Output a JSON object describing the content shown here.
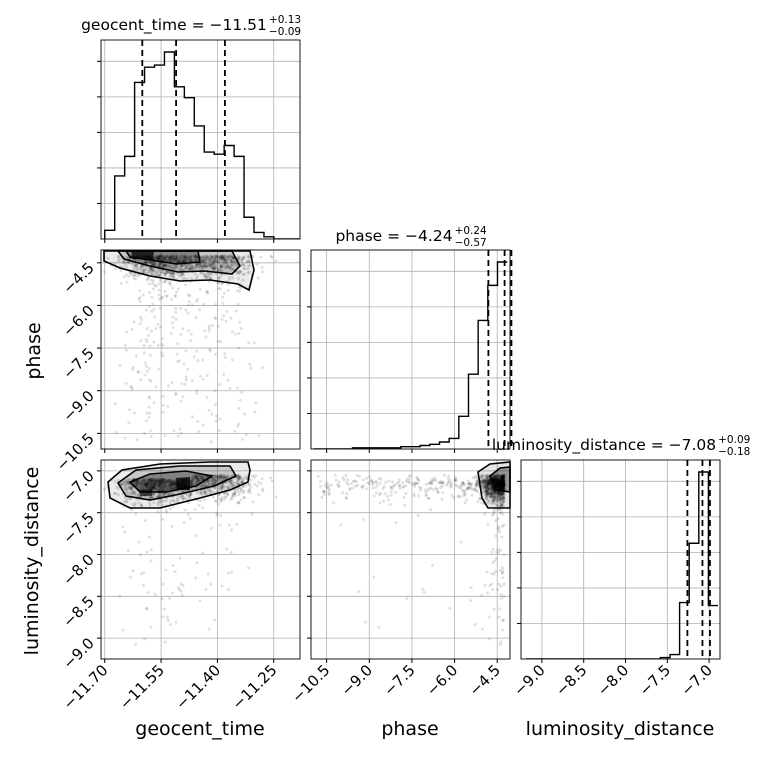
{
  "chart_data": {
    "type": "corner",
    "parameters": [
      "geocent_time",
      "phase",
      "luminosity_distance"
    ],
    "ranges": {
      "geocent_time": [
        -11.71,
        -11.18
      ],
      "phase": [
        -11.05,
        -4.05
      ],
      "luminosity_distance": [
        -9.25,
        -6.87
      ]
    },
    "ticks": {
      "geocent_time": [
        -11.7,
        -11.55,
        -11.4,
        -11.25
      ],
      "geocent_time_labels": [
        "−11.70",
        "−11.55",
        "−11.40",
        "−11.25"
      ],
      "phase": [
        -10.5,
        -9.0,
        -7.5,
        -6.0,
        -4.5
      ],
      "phase_labels": [
        "−10.5",
        "−9.0",
        "−7.5",
        "−6.0",
        "−4.5"
      ],
      "luminosity_distance": [
        -9.0,
        -8.5,
        -8.0,
        -7.5,
        -7.0
      ],
      "luminosity_distance_labels": [
        "−9.0",
        "−8.5",
        "−8.0",
        "−7.5",
        "−7.0"
      ]
    },
    "titles": [
      {
        "param": "geocent_time",
        "text": "geocent_time = −11.51",
        "plus": "+0.13",
        "minus": "−0.09"
      },
      {
        "param": "phase",
        "text": "phase = −4.24",
        "plus": "+0.24",
        "minus": "−0.57"
      },
      {
        "param": "luminosity_distance",
        "text": "luminosity_distance = −7.08",
        "plus": "+0.09",
        "minus": "−0.18"
      }
    ],
    "quantiles": {
      "geocent_time": [
        -11.6,
        -11.51,
        -11.38
      ],
      "phase": [
        -4.81,
        -4.24,
        -4.0
      ],
      "luminosity_distance": [
        -7.26,
        -7.08,
        -6.99
      ]
    },
    "histograms": {
      "geocent_time": {
        "edges_start": -11.7,
        "bin_width": 0.0265,
        "counts": [
          4,
          29,
          38,
          72,
          79,
          80,
          86,
          70,
          65,
          52,
          40,
          39,
          43,
          38,
          10,
          3,
          1,
          0,
          0,
          0
        ]
      },
      "phase": {
        "edges_start": -10.95,
        "bin_width": 0.34,
        "counts": [
          0,
          0,
          0,
          0,
          1,
          1,
          1,
          1,
          1,
          2,
          2,
          3,
          4,
          6,
          9,
          28,
          64,
          110,
          140,
          160
        ]
      },
      "luminosity_distance": {
        "edges_start": -9.19,
        "bin_width": 0.1148,
        "counts": [
          0,
          0,
          0,
          0,
          0,
          0,
          0,
          0,
          0,
          0,
          0,
          0,
          0,
          0,
          1,
          3,
          38,
          78,
          126,
          36
        ]
      }
    },
    "grid": true,
    "legend": "none"
  }
}
